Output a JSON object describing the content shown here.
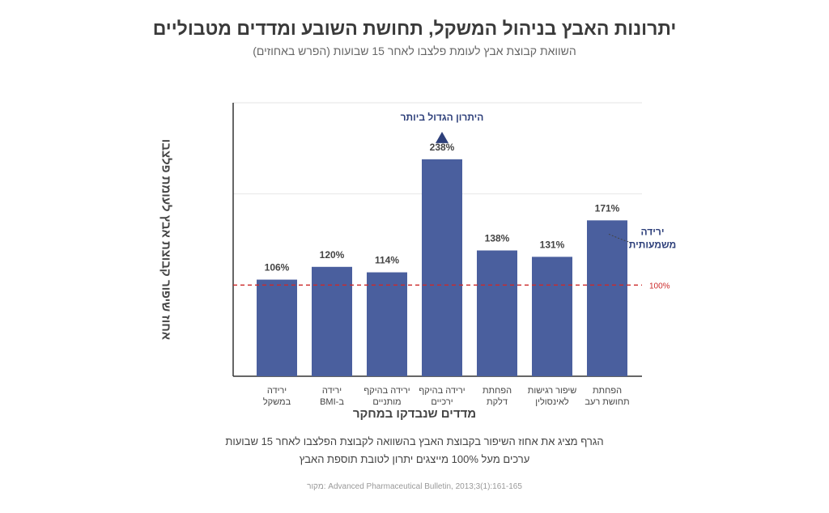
{
  "title": "יתרונות האבץ בניהול המשקל, תחושת השובע ומדדים מטבוליים",
  "subtitle": "השוואת קבוצת אבץ לעומת פלצבו לאחר 15 שבועות (הפרש באחוזים)",
  "notes": [
    "הגרף מציג את אחוז השיפור בקבוצת האבץ בהשוואה לקבוצת הפלצבו לאחר 15 שבועות",
    "ערכים מעל 100% מייצגים יתרון לטובת תוספת האבץ"
  ],
  "source": "מקור: Advanced Pharmaceutical Bulletin, 2013;3(1):161-165",
  "colors": {
    "bar": "#4a5f9e",
    "reference": "#cc2a2a",
    "annotation": "#2d3f7a",
    "axis": "#333333"
  },
  "chart_data": {
    "type": "bar",
    "title": "יתרונות האבץ בניהול המשקל, תחושת השובע ומדדים מטבוליים",
    "xlabel": "מדדים שנבדקו במחקר",
    "ylabel": "אחוז שיפור קבוצת אבץ לעומת פלצבו",
    "categories": [
      [
        "ירידה",
        "במשקל"
      ],
      [
        "ירידה",
        "ב-BMI"
      ],
      [
        "ירידה בהיקף",
        "מותניים"
      ],
      [
        "ירידה בהיקף",
        "ירכיים"
      ],
      [
        "הפחתת",
        "דלקת"
      ],
      [
        "שיפור רגישות",
        "לאינסולין"
      ],
      [
        "הפחתת",
        "תחושת רעב"
      ]
    ],
    "values": [
      106,
      120,
      114,
      238,
      138,
      131,
      171
    ],
    "value_labels": [
      "106%",
      "120%",
      "114%",
      "238%",
      "138%",
      "131%",
      "171%"
    ],
    "ylim": [
      0,
      300
    ],
    "grid": true,
    "reference_line": {
      "value": 100,
      "label": "100%"
    },
    "annotations": [
      {
        "category_index": 3,
        "text": "היתרון הגדול ביותר",
        "marker": "triangle-up"
      },
      {
        "category_index": 6,
        "text": [
          "ירידה",
          "משמעותית"
        ]
      }
    ]
  }
}
